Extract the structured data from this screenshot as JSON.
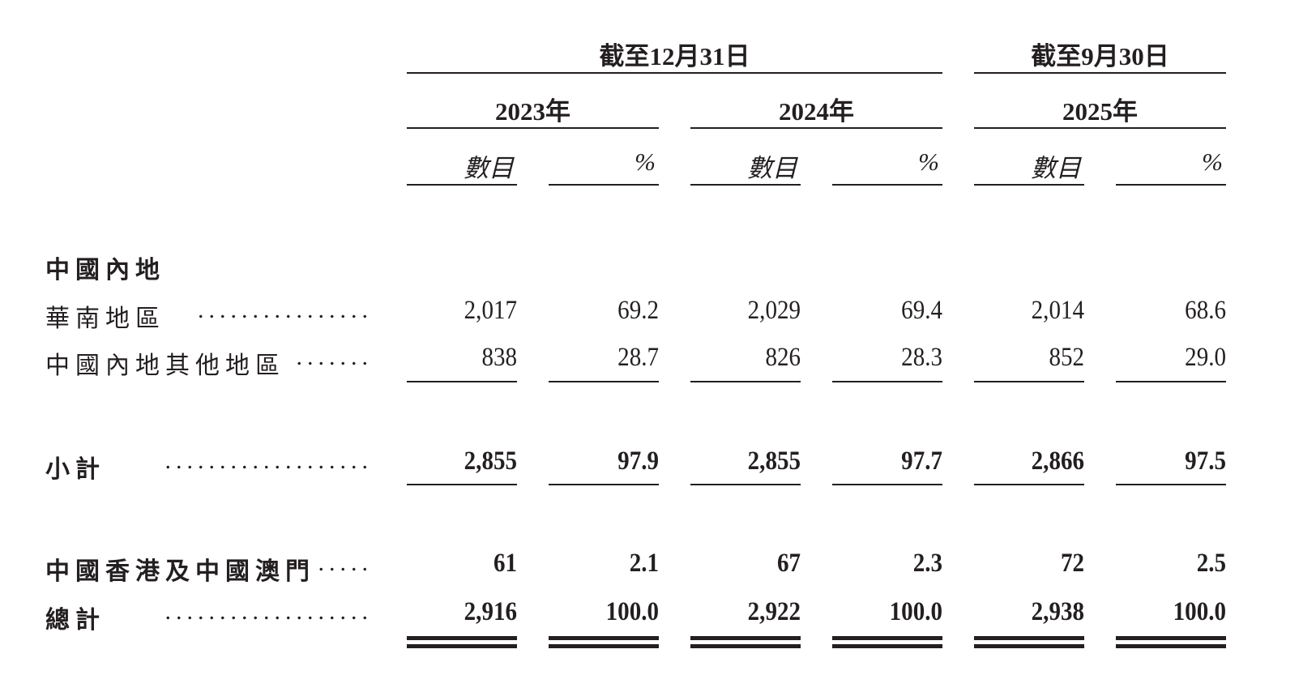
{
  "header": {
    "groups": [
      "截至12月31日",
      "截至9月30日"
    ],
    "years": [
      "2023年",
      "2024年",
      "2025年"
    ],
    "sub_amount": "數目",
    "sub_pct": "%"
  },
  "rows": [
    {
      "label": "中國內地",
      "bold": true,
      "dots": "",
      "values": []
    },
    {
      "label": "華南地區",
      "bold": false,
      "dots": "................",
      "values": [
        "2,017",
        "69.2",
        "2,029",
        "69.4",
        "2,014",
        "68.6"
      ]
    },
    {
      "label": "中國內地其他地區",
      "bold": false,
      "dots": ".......",
      "values": [
        "838",
        "28.7",
        "826",
        "28.3",
        "852",
        "29.0"
      ]
    },
    {
      "label": "小計",
      "bold": true,
      "dots": "...................",
      "values": [
        "2,855",
        "97.9",
        "2,855",
        "97.7",
        "2,866",
        "97.5"
      ]
    },
    {
      "label": "中國香港及中國澳門",
      "bold": true,
      "dots": ".....",
      "values": [
        "61",
        "2.1",
        "67",
        "2.3",
        "72",
        "2.5"
      ]
    },
    {
      "label": "總計",
      "bold": true,
      "dots": "...................",
      "values": [
        "2,916",
        "100.0",
        "2,922",
        "100.0",
        "2,938",
        "100.0"
      ]
    }
  ]
}
